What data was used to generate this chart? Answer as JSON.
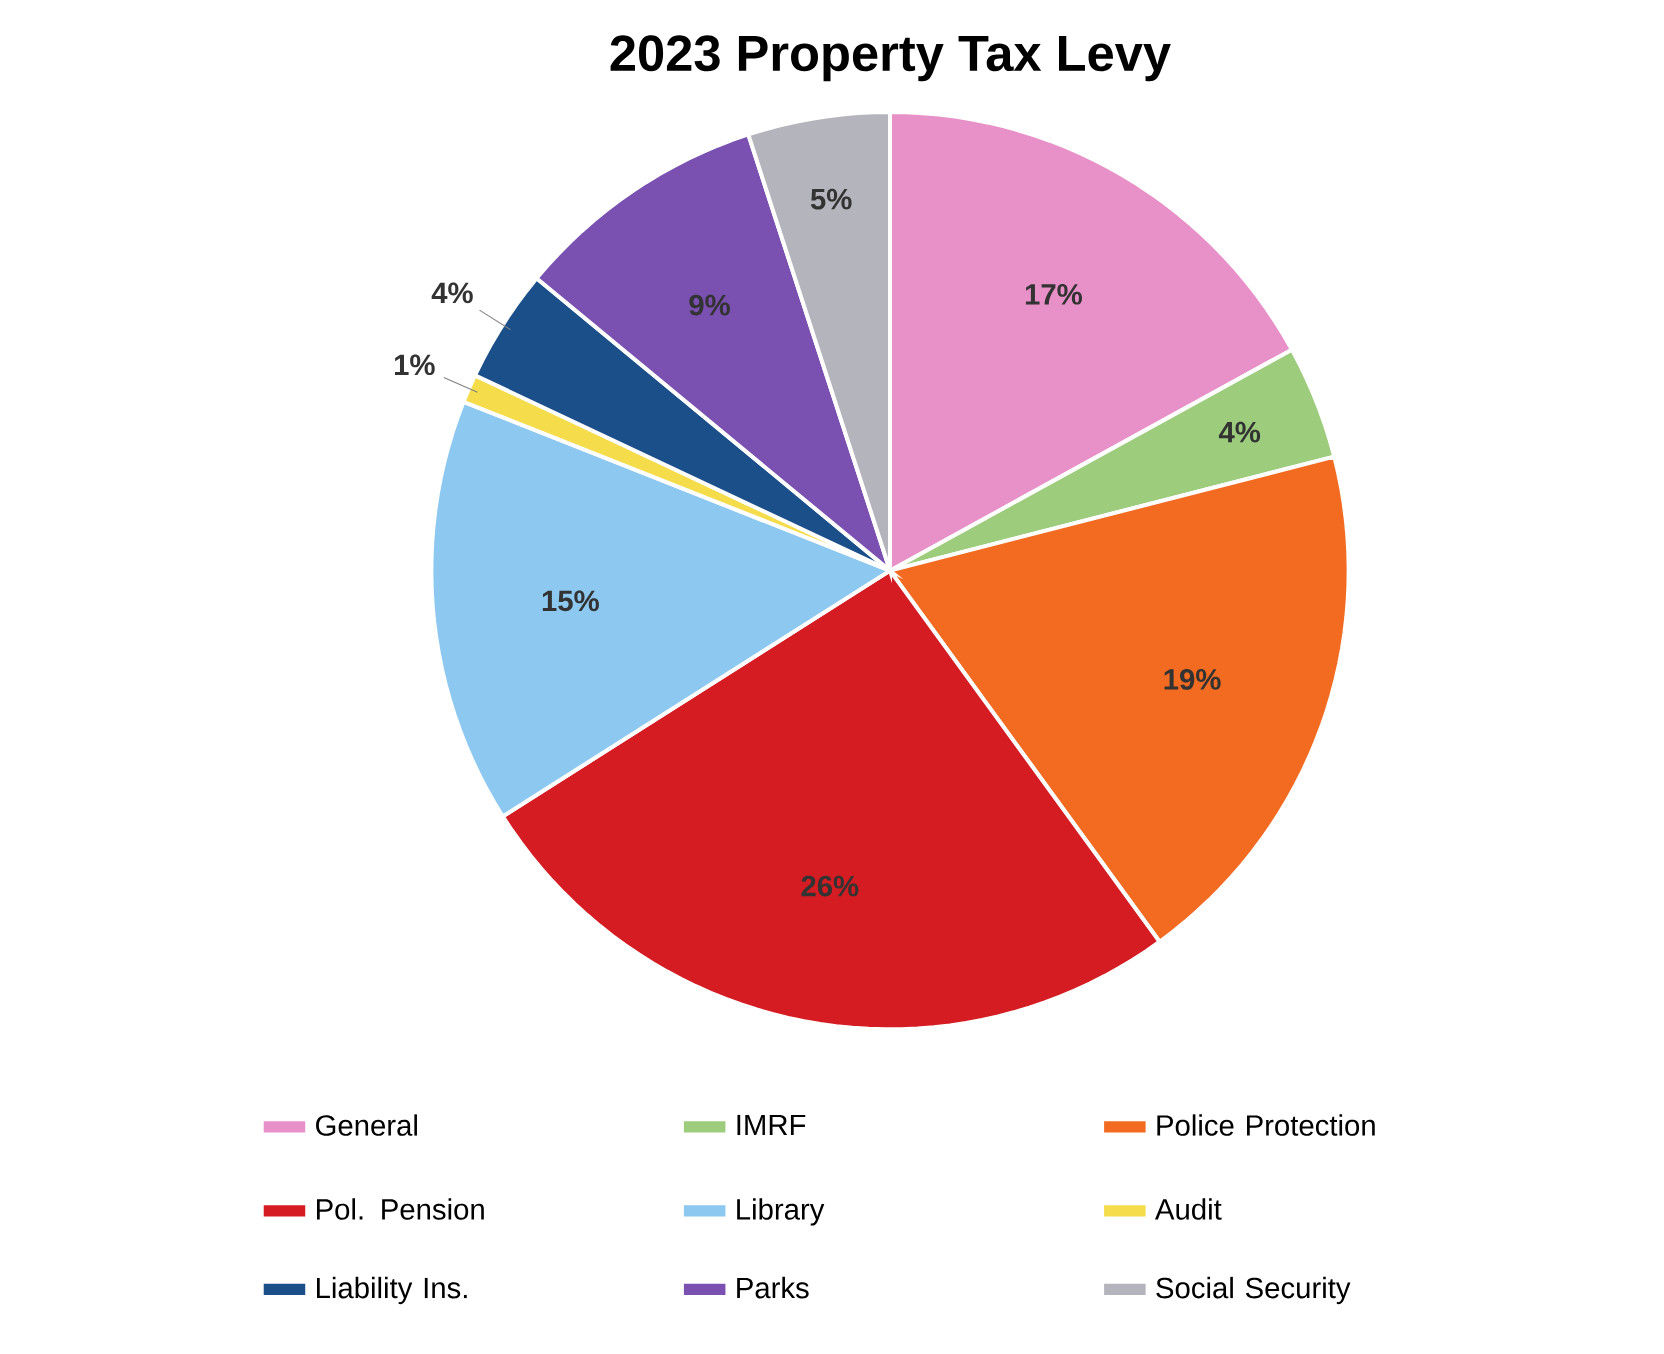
{
  "chart_data": {
    "type": "pie",
    "title": "2023 Property Tax Levy",
    "categories": [
      "General",
      "IMRF",
      "Police Protection",
      "Pol. Pension",
      "Library",
      "Audit",
      "Liability Ins.",
      "Parks",
      "Social Security"
    ],
    "values": [
      17,
      4,
      19,
      26,
      15,
      1,
      4,
      9,
      5
    ],
    "value_labels": [
      "17%",
      "4%",
      "19%",
      "26%",
      "15%",
      "1%",
      "4%",
      "9%",
      "5%"
    ],
    "colors": [
      "#e890c8",
      "#9ccc7c",
      "#f26b21",
      "#d41c22",
      "#8cc8f0",
      "#f5dc4a",
      "#1b4f8a",
      "#7a50b0",
      "#b4b4bc"
    ],
    "legend": "bottom"
  }
}
